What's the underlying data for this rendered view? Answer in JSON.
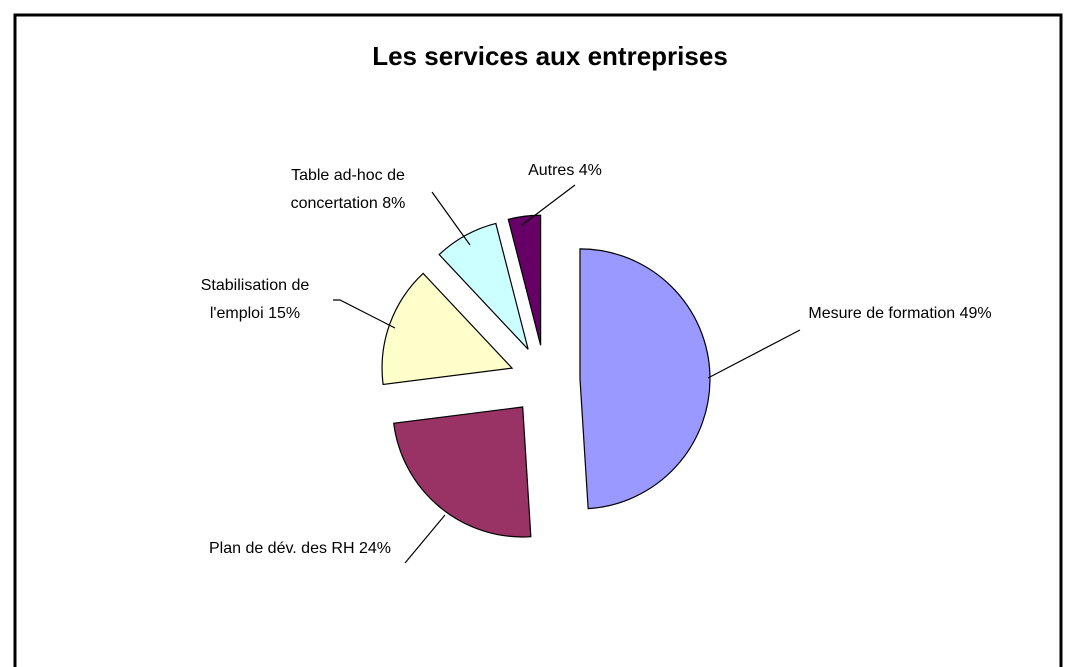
{
  "chart_data": {
    "type": "pie",
    "title": "Les services aux entreprises",
    "categories": [
      "Mesure de formation",
      "Plan de dév. des RH",
      "Stabilisation de l'emploi",
      "Table ad-hoc de concertation",
      "Autres"
    ],
    "values": [
      49,
      24,
      15,
      8,
      4
    ],
    "value_labels": [
      "49%",
      "24%",
      "15%",
      "8%",
      "4%"
    ],
    "colors": [
      "#9999ff",
      "#993366",
      "#ffffcc",
      "#ccffff",
      "#660066"
    ]
  }
}
